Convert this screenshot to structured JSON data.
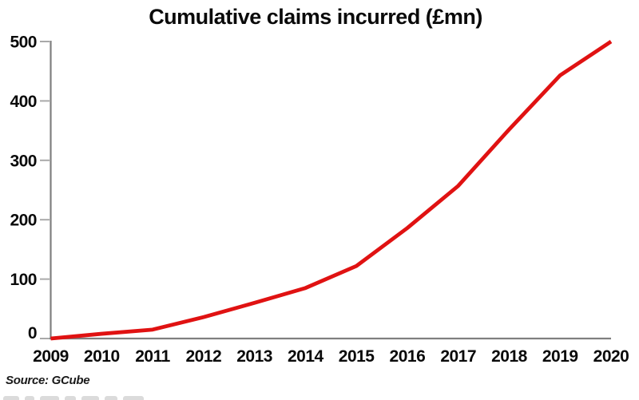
{
  "title": "Cumulative claims incurred (£mn)",
  "source_note": "Source: GCube",
  "chart_data": {
    "type": "line",
    "title": "Cumulative claims incurred (£mn)",
    "x": [
      "2009",
      "2010",
      "2011",
      "2012",
      "2013",
      "2014",
      "2015",
      "2016",
      "2017",
      "2018",
      "2019",
      "2020"
    ],
    "series": [
      {
        "name": "Cumulative claims incurred (£mn)",
        "values": [
          0,
          8,
          15,
          36,
          60,
          85,
          122,
          186,
          257,
          352,
          443,
          500
        ],
        "color": "#e01212"
      }
    ],
    "xlabel": "",
    "ylabel": "",
    "ylim": [
      0,
      500
    ],
    "yticks": [
      0,
      100,
      200,
      300,
      400,
      500
    ],
    "grid": false,
    "legend": "none",
    "axis_color": "#7f7f7f",
    "tick_color": "#a9a9a9",
    "text_color": "#0a0a0a",
    "source": "Source: GCube"
  }
}
